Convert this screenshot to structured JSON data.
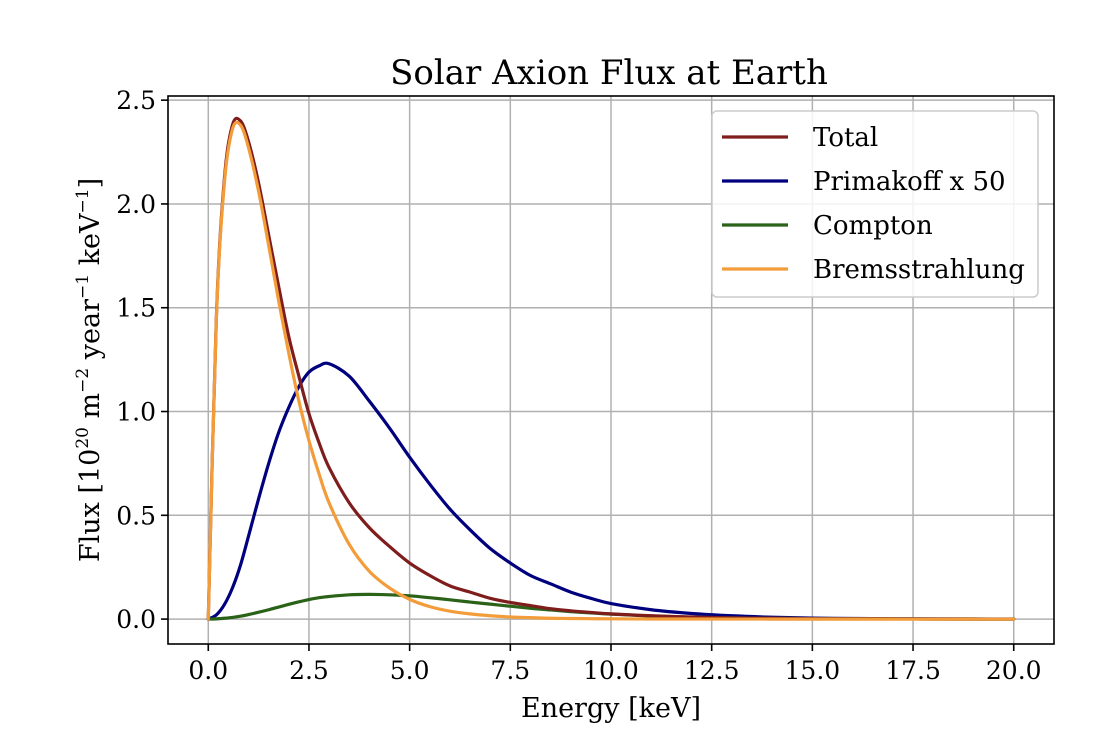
{
  "chart_data": {
    "type": "line",
    "title": "Solar Axion Flux at Earth",
    "xlabel": "Energy [keV]",
    "ylabel": "Flux [10^20 m^-2 year^-1 keV^-1]",
    "ylabel_parts": {
      "prefix": "Flux [10",
      "exp1": "20",
      "mid1": " m",
      "exp2": "−2",
      "mid2": " year",
      "exp3": "−1",
      "mid3": " keV",
      "exp4": "−1",
      "suffix": "]"
    },
    "xlim": [
      -1.0,
      21.0
    ],
    "ylim": [
      -0.12,
      2.52
    ],
    "xticks": [
      0.0,
      2.5,
      5.0,
      7.5,
      10.0,
      12.5,
      15.0,
      17.5,
      20.0
    ],
    "xtick_labels": [
      "0.0",
      "2.5",
      "5.0",
      "7.5",
      "10.0",
      "12.5",
      "15.0",
      "17.5",
      "20.0"
    ],
    "yticks": [
      0.0,
      0.5,
      1.0,
      1.5,
      2.0,
      2.5
    ],
    "ytick_labels": [
      "0.0",
      "0.5",
      "1.0",
      "1.5",
      "2.0",
      "2.5"
    ],
    "grid": true,
    "legend_position": "top-right",
    "x": [
      0,
      0.2,
      0.4,
      0.6,
      0.8,
      1.0,
      1.25,
      1.5,
      1.75,
      2.0,
      2.25,
      2.5,
      2.75,
      3.0,
      3.5,
      4.0,
      4.5,
      5.0,
      5.5,
      6.0,
      6.5,
      7.0,
      7.5,
      8.0,
      8.5,
      9.0,
      9.5,
      10.0,
      11.0,
      12.0,
      13.0,
      14.0,
      15.0,
      16.0,
      17.0,
      18.0,
      19.0,
      20.0
    ],
    "series": [
      {
        "name": "Total",
        "color": "#7f1d1d",
        "values": [
          0,
          1.45,
          2.12,
          2.38,
          2.4,
          2.3,
          2.1,
          1.85,
          1.6,
          1.36,
          1.17,
          0.99,
          0.85,
          0.73,
          0.56,
          0.44,
          0.35,
          0.27,
          0.21,
          0.16,
          0.13,
          0.1,
          0.08,
          0.065,
          0.05,
          0.04,
          0.032,
          0.025,
          0.016,
          0.01,
          0.006,
          0.004,
          0.002,
          0.0015,
          0.001,
          0.0005,
          0.0003,
          0.0002
        ]
      },
      {
        "name": "Primakoff x 50",
        "color": "#00007f",
        "values": [
          0,
          0.02,
          0.07,
          0.15,
          0.26,
          0.4,
          0.58,
          0.75,
          0.9,
          1.02,
          1.12,
          1.19,
          1.22,
          1.23,
          1.17,
          1.05,
          0.92,
          0.78,
          0.65,
          0.53,
          0.43,
          0.34,
          0.27,
          0.21,
          0.17,
          0.13,
          0.1,
          0.075,
          0.045,
          0.027,
          0.016,
          0.009,
          0.005,
          0.003,
          0.002,
          0.001,
          0.0006,
          0.0003
        ]
      },
      {
        "name": "Compton",
        "color": "#2a6218",
        "values": [
          0,
          0.001,
          0.004,
          0.008,
          0.014,
          0.022,
          0.033,
          0.045,
          0.058,
          0.071,
          0.083,
          0.094,
          0.103,
          0.109,
          0.117,
          0.119,
          0.117,
          0.112,
          0.103,
          0.093,
          0.082,
          0.072,
          0.062,
          0.052,
          0.044,
          0.036,
          0.03,
          0.024,
          0.015,
          0.009,
          0.006,
          0.004,
          0.002,
          0.0015,
          0.001,
          0.0005,
          0.0003,
          0.0002
        ]
      },
      {
        "name": "Bremsstrahlung",
        "color": "#f39c3a",
        "values": [
          0,
          1.44,
          2.1,
          2.36,
          2.38,
          2.27,
          2.06,
          1.8,
          1.53,
          1.28,
          1.05,
          0.86,
          0.7,
          0.56,
          0.36,
          0.23,
          0.15,
          0.095,
          0.06,
          0.038,
          0.025,
          0.016,
          0.01,
          0.007,
          0.004,
          0.003,
          0.002,
          0.0013,
          0.0006,
          0.0003,
          0.0001,
          0,
          0,
          0,
          0,
          0,
          0,
          0
        ]
      }
    ]
  }
}
